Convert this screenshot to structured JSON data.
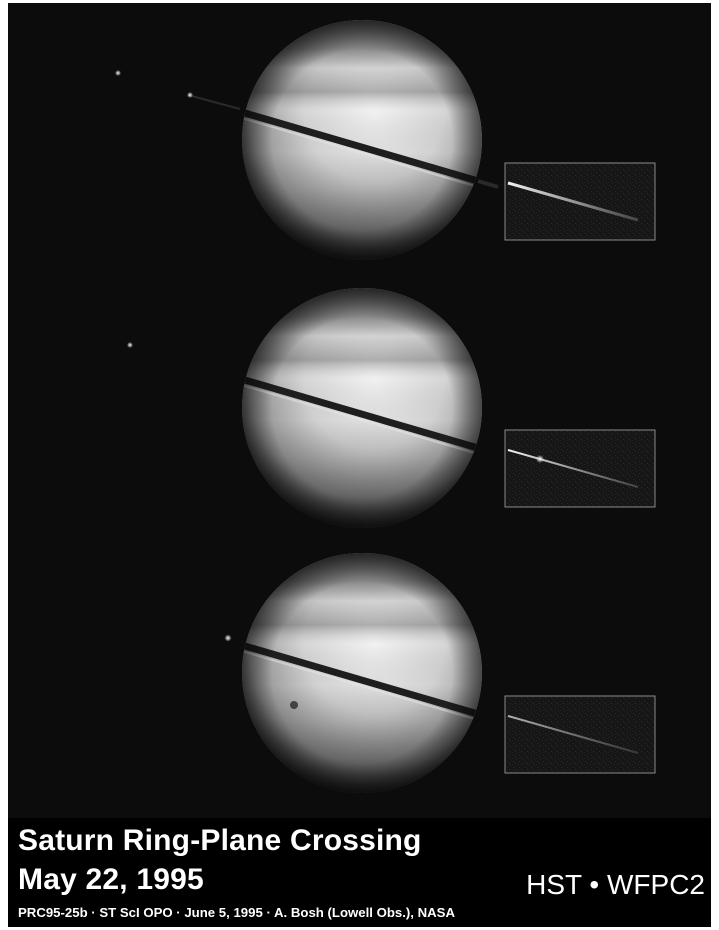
{
  "figure": {
    "title_line_1": "Saturn Ring-Plane Crossing",
    "title_line_2": "May 22, 1995",
    "instrument": "HST • WFPC2",
    "credit": "PRC95-25b · ST ScI OPO · June 5, 1995 · A. Bosh (Lowell Obs.), NASA"
  },
  "colors": {
    "background": "#0c0c0c",
    "caption_background": "#000000",
    "caption_text": "#ffffff",
    "inset_border": "#8a8a8a"
  }
}
